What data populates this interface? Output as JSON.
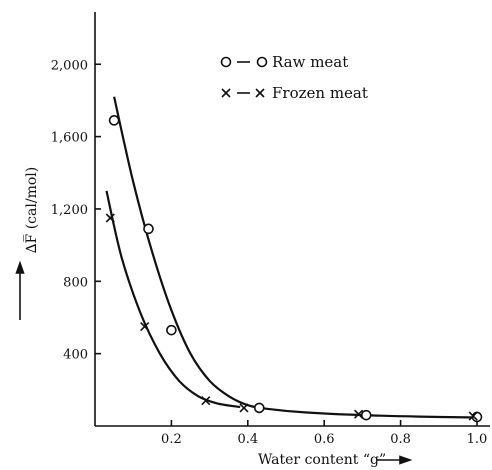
{
  "chart_data": {
    "type": "scatter",
    "title": "",
    "xlabel": "Water content “g”",
    "ylabel": "∆F̅ (cal/mol)",
    "xlim": [
      0.0,
      1.05
    ],
    "ylim": [
      0,
      2300
    ],
    "x_ticks": [
      0.2,
      0.4,
      0.6,
      0.8,
      1.0
    ],
    "x_tick_labels": [
      "0.2",
      "0.4",
      "0.6",
      "0.8",
      "1.0"
    ],
    "y_ticks": [
      400,
      800,
      1200,
      1600,
      2000
    ],
    "y_tick_labels": [
      "400",
      "800",
      "1,200",
      "1,600",
      "2,000"
    ],
    "grid": false,
    "legend_position": "top-right",
    "series": [
      {
        "name": "Raw meat",
        "legend_label": "o — o Raw meat",
        "marker": "circle",
        "points": [
          {
            "x": 0.05,
            "y": 1690
          },
          {
            "x": 0.14,
            "y": 1090
          },
          {
            "x": 0.2,
            "y": 530
          },
          {
            "x": 0.43,
            "y": 100
          },
          {
            "x": 0.71,
            "y": 60
          },
          {
            "x": 1.0,
            "y": 50
          }
        ],
        "curve": [
          {
            "x": 0.05,
            "y": 1820
          },
          {
            "x": 0.1,
            "y": 1350
          },
          {
            "x": 0.15,
            "y": 960
          },
          {
            "x": 0.2,
            "y": 640
          },
          {
            "x": 0.25,
            "y": 400
          },
          {
            "x": 0.3,
            "y": 250
          },
          {
            "x": 0.35,
            "y": 165
          },
          {
            "x": 0.4,
            "y": 115
          },
          {
            "x": 0.45,
            "y": 95
          },
          {
            "x": 0.55,
            "y": 75
          },
          {
            "x": 0.7,
            "y": 60
          },
          {
            "x": 0.85,
            "y": 52
          },
          {
            "x": 1.0,
            "y": 47
          }
        ]
      },
      {
        "name": "Frozen meat",
        "legend_label": "x — x Frozen meat",
        "marker": "x",
        "points": [
          {
            "x": 0.04,
            "y": 1150
          },
          {
            "x": 0.13,
            "y": 550
          },
          {
            "x": 0.29,
            "y": 140
          },
          {
            "x": 0.39,
            "y": 100
          },
          {
            "x": 0.69,
            "y": 65
          },
          {
            "x": 0.99,
            "y": 55
          }
        ],
        "curve": [
          {
            "x": 0.03,
            "y": 1300
          },
          {
            "x": 0.07,
            "y": 930
          },
          {
            "x": 0.12,
            "y": 620
          },
          {
            "x": 0.17,
            "y": 400
          },
          {
            "x": 0.22,
            "y": 250
          },
          {
            "x": 0.27,
            "y": 165
          },
          {
            "x": 0.32,
            "y": 125
          },
          {
            "x": 0.38,
            "y": 105
          }
        ]
      }
    ]
  }
}
